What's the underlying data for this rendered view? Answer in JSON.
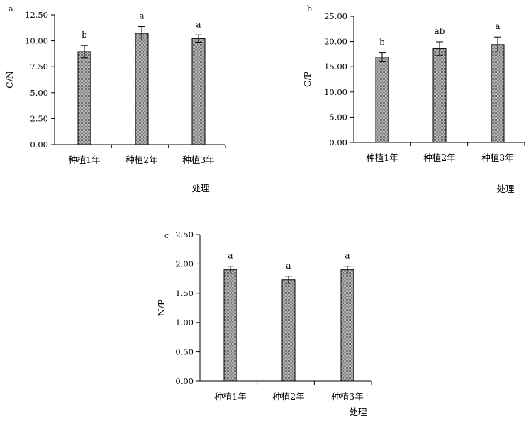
{
  "chart_data": [
    {
      "type": "bar",
      "panel_label": "a",
      "categories": [
        "种植1年",
        "种植2年",
        "种植3年"
      ],
      "values": [
        8.95,
        10.72,
        10.22
      ],
      "errors": [
        0.6,
        0.65,
        0.35
      ],
      "significance": [
        "b",
        "a",
        "a"
      ],
      "xlabel": "处理",
      "ylabel": "C/N",
      "ylim": [
        0,
        12.5
      ],
      "yticks": [
        "0.00",
        "2.50",
        "5.00",
        "7.50",
        "10.00",
        "12.50"
      ],
      "ytick_values": [
        0,
        2.5,
        5,
        7.5,
        10,
        12.5
      ],
      "grid": false,
      "colors": {
        "bar_fill": "#a8a8a8",
        "bar_edge": "#000000"
      }
    },
    {
      "type": "bar",
      "panel_label": "b",
      "categories": [
        "种植1年",
        "种植2年",
        "种植3年"
      ],
      "values": [
        16.9,
        18.6,
        19.4
      ],
      "errors": [
        0.85,
        1.35,
        1.5
      ],
      "significance": [
        "b",
        "ab",
        "a"
      ],
      "xlabel": "处理",
      "ylabel": "C/P",
      "ylim": [
        0,
        25
      ],
      "yticks": [
        "0.00",
        "5.00",
        "10.00",
        "15.00",
        "20.00",
        "25.00"
      ],
      "ytick_values": [
        0,
        5,
        10,
        15,
        20,
        25
      ],
      "grid": false,
      "colors": {
        "bar_fill": "#a8a8a8",
        "bar_edge": "#000000"
      }
    },
    {
      "type": "bar",
      "panel_label": "c",
      "categories": [
        "种植1年",
        "种植2年",
        "种植3年"
      ],
      "values": [
        1.9,
        1.73,
        1.9
      ],
      "errors": [
        0.06,
        0.06,
        0.06
      ],
      "significance": [
        "a",
        "a",
        "a"
      ],
      "xlabel": "处理",
      "ylabel": "N/P",
      "ylim": [
        0,
        2.5
      ],
      "yticks": [
        "0.00",
        "0.50",
        "1.00",
        "1.50",
        "2.00",
        "2.50"
      ],
      "ytick_values": [
        0,
        0.5,
        1,
        1.5,
        2,
        2.5
      ],
      "grid": false,
      "colors": {
        "bar_fill": "#a8a8a8",
        "bar_edge": "#000000"
      }
    }
  ]
}
